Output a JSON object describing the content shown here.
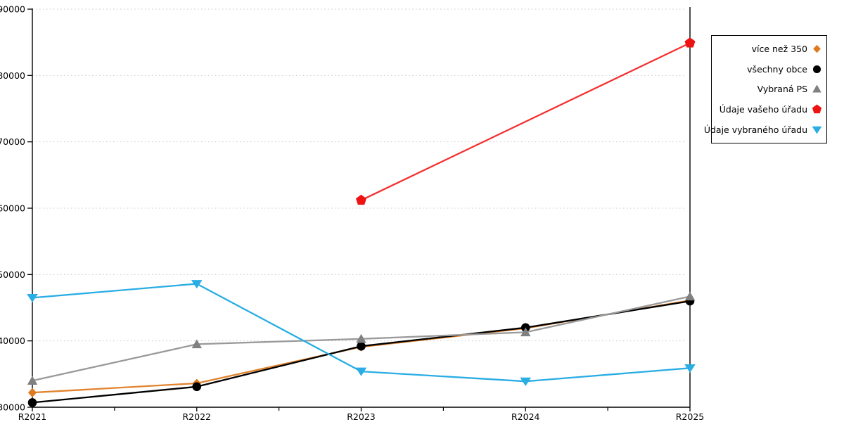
{
  "page": {
    "background": "#ffffff"
  },
  "chart_data": {
    "type": "line",
    "title": "",
    "xlabel": "",
    "ylabel": "",
    "categories": [
      "R2021",
      "R2022",
      "R2023",
      "R2024",
      "R2025"
    ],
    "x_tick_labels": [
      "R2021",
      "R2022",
      "R2023",
      "R2024",
      "R2025"
    ],
    "y_tick_labels": [
      "30000",
      "40000",
      "50000",
      "60000",
      "70000",
      "80000",
      "90000"
    ],
    "ylim": [
      30000,
      90000
    ],
    "y_tick_step": 10000,
    "grid": "horizontal-dashed",
    "grid_color": "#c8c8c8",
    "axis_color": "#000000",
    "legend_position": "right",
    "series": [
      {
        "name": "více než 350",
        "marker": "diamond",
        "color": "#df7a20",
        "line_color": "#e2832d",
        "values": [
          32200,
          33600,
          39100,
          41900,
          46100
        ]
      },
      {
        "name": "všechny obce",
        "marker": "circle",
        "color": "#000000",
        "line_color": "#000000",
        "values": [
          30700,
          33100,
          39200,
          42000,
          46000
        ]
      },
      {
        "name": "Vybraná PS",
        "marker": "triangle-up",
        "color": "#808080",
        "line_color": "#9a9a9a",
        "values": [
          34000,
          39500,
          40300,
          41300,
          46700
        ]
      },
      {
        "name": "Údaje vašeho úřadu",
        "marker": "pentagon",
        "color": "#ee1212",
        "line_color": "#f43030",
        "values": [
          null,
          null,
          61200,
          null,
          84900
        ]
      },
      {
        "name": "Údaje vybraného úřadu",
        "marker": "triangle-down",
        "color": "#29ade4",
        "line_color": "#29ade4",
        "values": [
          46500,
          48600,
          35400,
          33900,
          35900
        ]
      }
    ]
  }
}
